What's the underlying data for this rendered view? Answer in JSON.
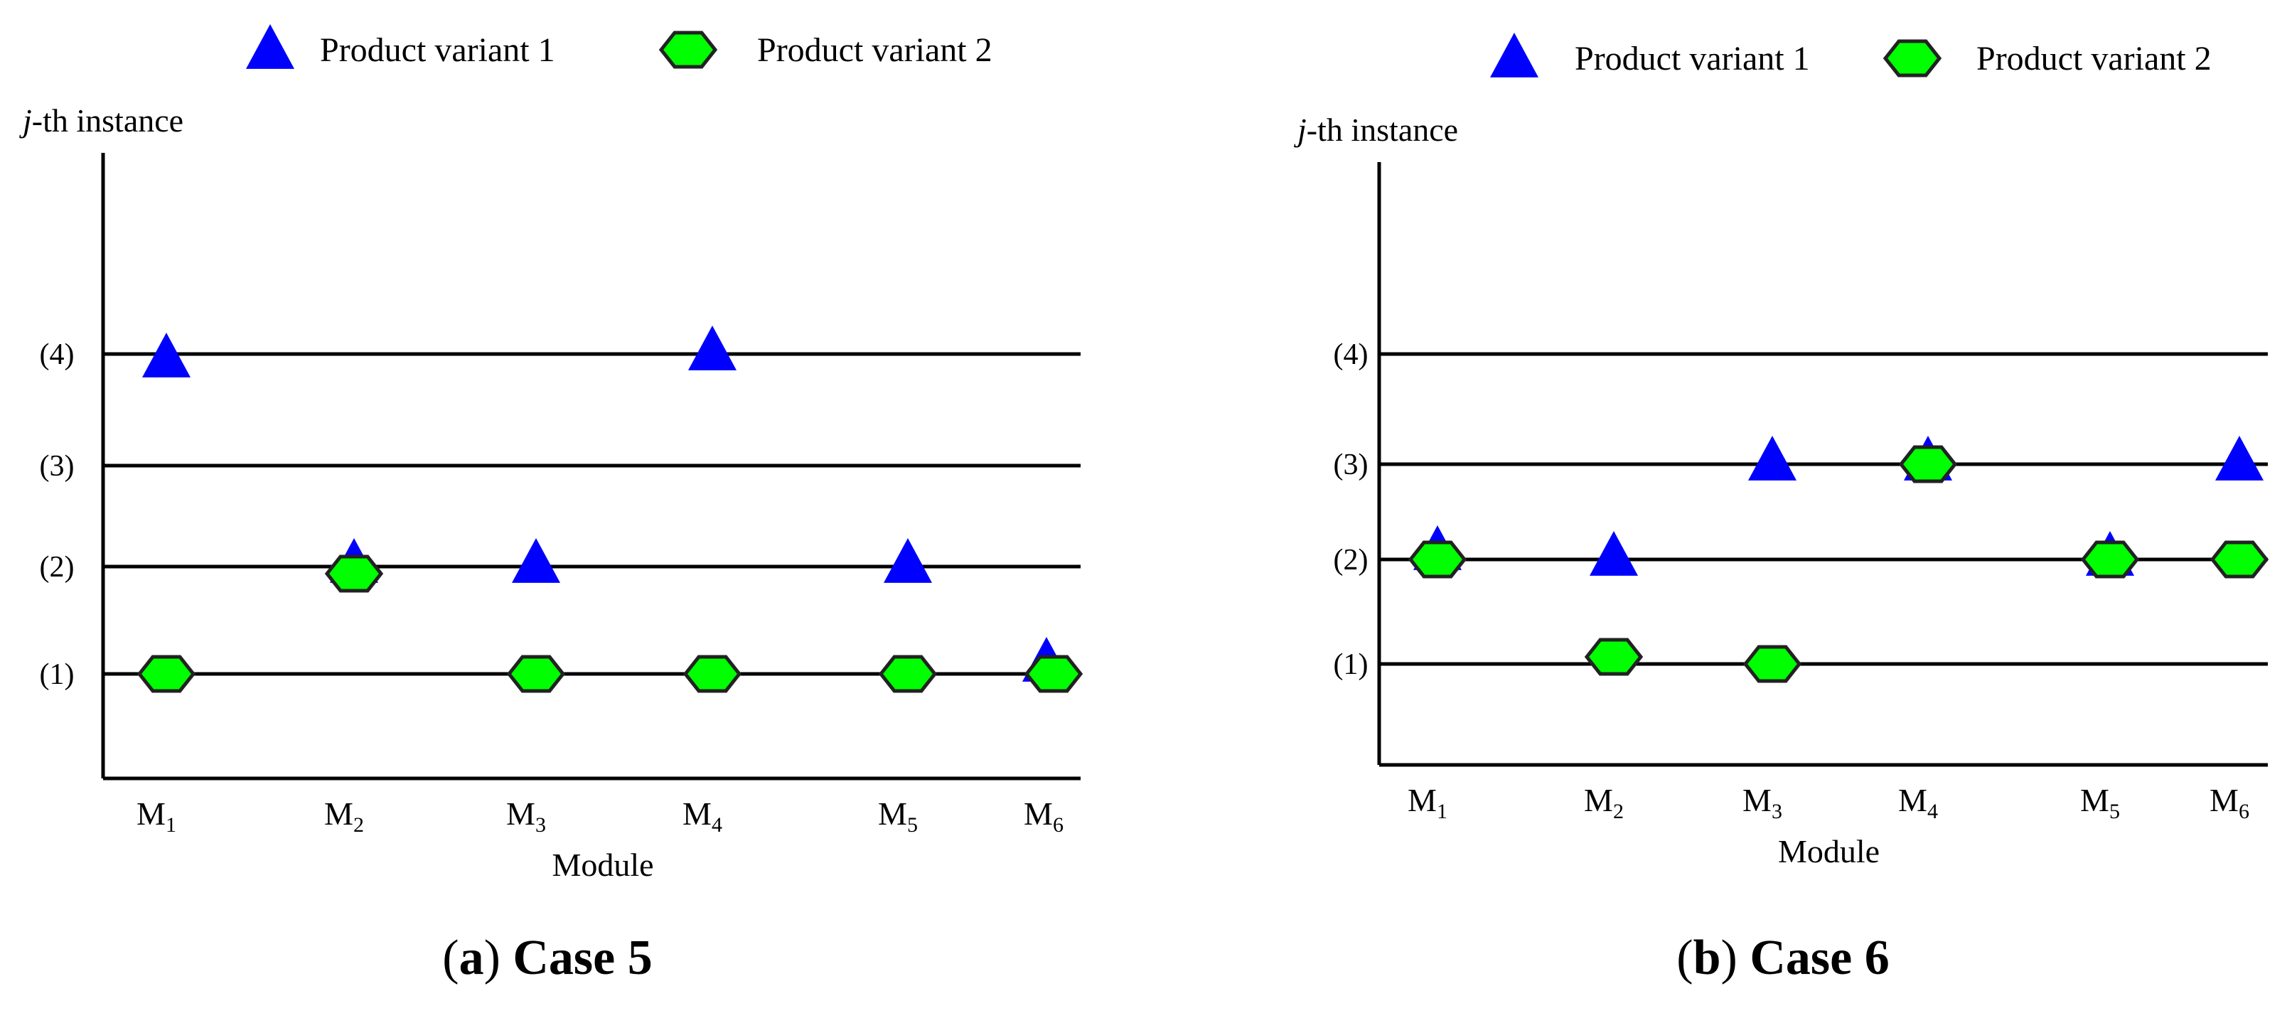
{
  "legend": {
    "series_1": "Product variant 1",
    "series_2": "Product variant 2"
  },
  "colors": {
    "series_1": "#0000ff",
    "series_2": "#00ff00"
  },
  "chart_data": [
    {
      "type": "scatter",
      "caption_label": "a",
      "caption_title": "Case 5",
      "ylabel_italic": "j",
      "ylabel_rest": "-th instance",
      "xlabel": "Module",
      "x_categories": [
        {
          "main": "M",
          "sub": "1"
        },
        {
          "main": "M",
          "sub": "2"
        },
        {
          "main": "M",
          "sub": "3"
        },
        {
          "main": "M",
          "sub": "4"
        },
        {
          "main": "M",
          "sub": "5"
        },
        {
          "main": "M",
          "sub": "6"
        }
      ],
      "y_ticks": [
        {
          "value": 1,
          "label": "(1)"
        },
        {
          "value": 2,
          "label": "(2)"
        },
        {
          "value": 3,
          "label": "(3)"
        },
        {
          "value": 4,
          "label": "(4)"
        }
      ],
      "series": [
        {
          "name": "Product variant 1",
          "marker": "triangle",
          "points": [
            {
              "x": "M1",
              "y": 4
            },
            {
              "x": "M2",
              "y": 2
            },
            {
              "x": "M3",
              "y": 2
            },
            {
              "x": "M4",
              "y": 4
            },
            {
              "x": "M5",
              "y": 2
            },
            {
              "x": "M6",
              "y": 1
            }
          ]
        },
        {
          "name": "Product variant 2",
          "marker": "hexagon",
          "points": [
            {
              "x": "M1",
              "y": 1
            },
            {
              "x": "M2",
              "y": 2
            },
            {
              "x": "M3",
              "y": 1
            },
            {
              "x": "M4",
              "y": 1
            },
            {
              "x": "M5",
              "y": 1
            },
            {
              "x": "M6",
              "y": 1
            }
          ]
        }
      ]
    },
    {
      "type": "scatter",
      "caption_label": "b",
      "caption_title": "Case 6",
      "ylabel_italic": "j",
      "ylabel_rest": "-th instance",
      "xlabel": "Module",
      "x_categories": [
        {
          "main": "M",
          "sub": "1"
        },
        {
          "main": "M",
          "sub": "2"
        },
        {
          "main": "M",
          "sub": "3"
        },
        {
          "main": "M",
          "sub": "4"
        },
        {
          "main": "M",
          "sub": "5"
        },
        {
          "main": "M",
          "sub": "6"
        }
      ],
      "y_ticks": [
        {
          "value": 1,
          "label": "(1)"
        },
        {
          "value": 2,
          "label": "(2)"
        },
        {
          "value": 3,
          "label": "(3)"
        },
        {
          "value": 4,
          "label": "(4)"
        }
      ],
      "series": [
        {
          "name": "Product variant 1",
          "marker": "triangle",
          "points": [
            {
              "x": "M1",
              "y": 2
            },
            {
              "x": "M2",
              "y": 2
            },
            {
              "x": "M3",
              "y": 3
            },
            {
              "x": "M4",
              "y": 3
            },
            {
              "x": "M5",
              "y": 2
            },
            {
              "x": "M6",
              "y": 3
            }
          ]
        },
        {
          "name": "Product variant 2",
          "marker": "hexagon",
          "points": [
            {
              "x": "M1",
              "y": 2
            },
            {
              "x": "M2",
              "y": 1
            },
            {
              "x": "M3",
              "y": 1
            },
            {
              "x": "M4",
              "y": 3
            },
            {
              "x": "M5",
              "y": 2
            },
            {
              "x": "M6",
              "y": 2
            }
          ]
        }
      ]
    }
  ]
}
